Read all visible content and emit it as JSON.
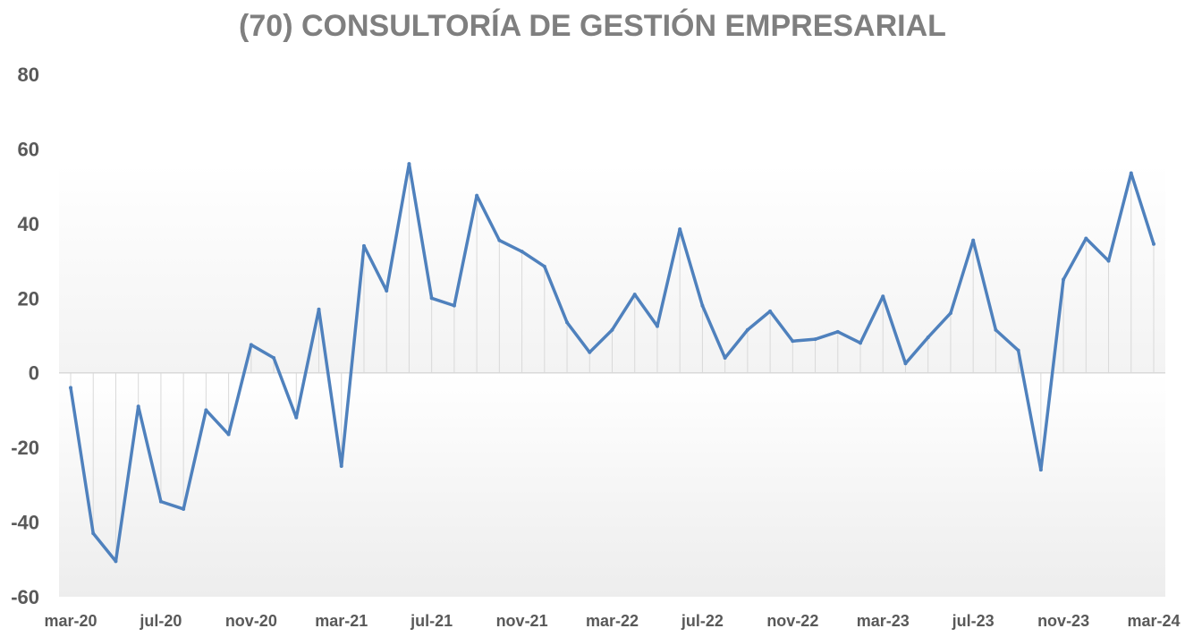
{
  "chart_data": {
    "type": "line",
    "title": "(70) CONSULTORÍA DE GESTIÓN EMPRESARIAL",
    "xlabel": "",
    "ylabel": "",
    "ylim": [
      -60,
      80
    ],
    "yticks": [
      80,
      60,
      40,
      20,
      0,
      -20,
      -40,
      -60
    ],
    "xtick_labels": [
      "mar-20",
      "jul-20",
      "nov-20",
      "mar-21",
      "jul-21",
      "nov-21",
      "mar-22",
      "jul-22",
      "nov-22",
      "mar-23",
      "jul-23",
      "nov-23",
      "mar-24"
    ],
    "grid": false,
    "drop_lines": true,
    "line_color": "#4f81bd",
    "x": [
      "mar-20",
      "abr-20",
      "may-20",
      "jun-20",
      "jul-20",
      "ago-20",
      "sep-20",
      "oct-20",
      "nov-20",
      "dic-20",
      "ene-21",
      "feb-21",
      "mar-21",
      "abr-21",
      "may-21",
      "jun-21",
      "jul-21",
      "ago-21",
      "sep-21",
      "oct-21",
      "nov-21",
      "dic-21",
      "ene-22",
      "feb-22",
      "mar-22",
      "abr-22",
      "may-22",
      "jun-22",
      "jul-22",
      "ago-22",
      "sep-22",
      "oct-22",
      "nov-22",
      "dic-22",
      "ene-23",
      "feb-23",
      "mar-23",
      "abr-23",
      "may-23",
      "jun-23",
      "jul-23",
      "ago-23",
      "sep-23",
      "oct-23",
      "nov-23",
      "dic-23",
      "ene-24",
      "feb-24",
      "mar-24"
    ],
    "series": [
      {
        "values": [
          -4,
          -43,
          -50.5,
          -9,
          -34.5,
          -36.5,
          -10,
          -16.5,
          7.5,
          4,
          -12,
          17,
          -25,
          34,
          22,
          56,
          20,
          18,
          47.5,
          35.5,
          32.5,
          28.5,
          13.5,
          5.5,
          11.5,
          21,
          12.5,
          38.5,
          18,
          4,
          11.5,
          16.5,
          8.5,
          9,
          11,
          8,
          20.5,
          2.5,
          9.5,
          16,
          35.5,
          11.5,
          6,
          -26,
          25,
          36,
          30,
          53.5,
          34.5
        ]
      }
    ]
  }
}
